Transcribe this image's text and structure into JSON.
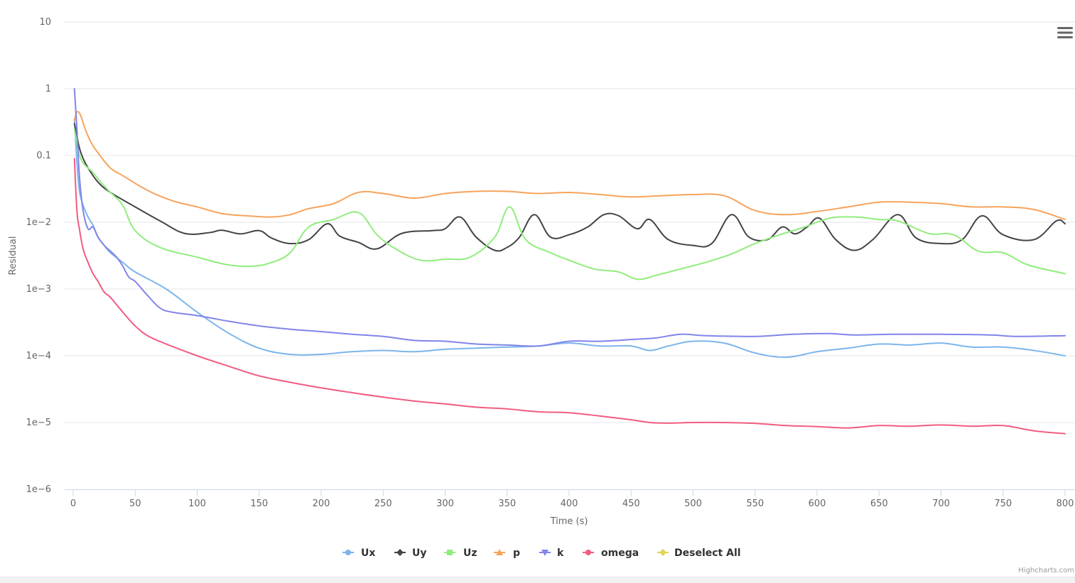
{
  "chart_data": {
    "type": "line",
    "title": "",
    "xlabel": "Time (s)",
    "ylabel": "Residual",
    "yscale": "log",
    "ylim": [
      1e-06,
      10
    ],
    "xlim": [
      0,
      800
    ],
    "x_ticks": [
      0,
      50,
      100,
      150,
      200,
      250,
      300,
      350,
      400,
      450,
      500,
      550,
      600,
      650,
      700,
      750,
      800
    ],
    "x_tick_labels": [
      "0",
      "50",
      "100",
      "150",
      "200",
      "250",
      "300",
      "350",
      "400",
      "450",
      "500",
      "550",
      "600",
      "650",
      "700",
      "750",
      "800"
    ],
    "y_ticks": [
      1e-06,
      1e-05,
      0.0001,
      0.001,
      0.01,
      0.1,
      1,
      10
    ],
    "y_tick_labels": [
      "1e−6",
      "1e−5",
      "1e−4",
      "1e−3",
      "1e−2",
      "0.1",
      "1",
      "10"
    ],
    "series": [
      {
        "name": "Ux",
        "color": "#7cb5ec",
        "marker": "circle",
        "x": [
          1,
          3,
          5,
          8,
          12,
          16,
          20,
          25,
          30,
          40,
          50,
          75,
          100,
          125,
          150,
          175,
          200,
          225,
          250,
          275,
          300,
          325,
          350,
          375,
          400,
          425,
          450,
          465,
          480,
          500,
          525,
          550,
          575,
          600,
          625,
          650,
          675,
          700,
          725,
          750,
          775,
          800
        ],
        "y": [
          0.35,
          0.08,
          0.03,
          0.018,
          0.012,
          0.009,
          0.006,
          0.0045,
          0.0035,
          0.0025,
          0.0018,
          0.001,
          0.00045,
          0.00022,
          0.00013,
          0.000105,
          0.000105,
          0.000115,
          0.00012,
          0.000115,
          0.000125,
          0.00013,
          0.000135,
          0.00014,
          0.000155,
          0.00014,
          0.00014,
          0.00012,
          0.00014,
          0.000165,
          0.000155,
          0.00011,
          9.5e-05,
          0.000115,
          0.00013,
          0.00015,
          0.000145,
          0.000155,
          0.000135,
          0.000135,
          0.00012,
          0.0001
        ]
      },
      {
        "name": "Uy",
        "color": "#434348",
        "marker": "diamond",
        "x": [
          1,
          3,
          5,
          8,
          12,
          20,
          30,
          50,
          70,
          90,
          110,
          120,
          135,
          150,
          160,
          175,
          190,
          205,
          215,
          230,
          245,
          265,
          290,
          300,
          312,
          325,
          340,
          350,
          360,
          372,
          385,
          400,
          415,
          428,
          440,
          455,
          465,
          480,
          500,
          515,
          531,
          545,
          560,
          572,
          582,
          592,
          602,
          615,
          630,
          645,
          665,
          680,
          700,
          717,
          733,
          750,
          775,
          793,
          800
        ],
        "y": [
          0.3,
          0.2,
          0.13,
          0.09,
          0.065,
          0.04,
          0.028,
          0.017,
          0.0105,
          0.0068,
          0.007,
          0.0076,
          0.0067,
          0.0075,
          0.0058,
          0.0048,
          0.0055,
          0.0095,
          0.0062,
          0.005,
          0.004,
          0.0068,
          0.0075,
          0.008,
          0.012,
          0.006,
          0.0038,
          0.0042,
          0.006,
          0.013,
          0.006,
          0.0065,
          0.0085,
          0.013,
          0.0125,
          0.008,
          0.011,
          0.0055,
          0.0045,
          0.0048,
          0.013,
          0.006,
          0.0055,
          0.0085,
          0.0067,
          0.0085,
          0.0115,
          0.0055,
          0.0038,
          0.0055,
          0.013,
          0.0058,
          0.0048,
          0.0055,
          0.0125,
          0.0065,
          0.0055,
          0.0105,
          0.0095
        ]
      },
      {
        "name": "Uz",
        "color": "#90ed7d",
        "marker": "square",
        "x": [
          1,
          3,
          6,
          10,
          15,
          20,
          25,
          30,
          40,
          50,
          70,
          100,
          125,
          145,
          160,
          175,
          190,
          210,
          230,
          245,
          260,
          280,
          300,
          320,
          340,
          352,
          365,
          385,
          400,
          420,
          440,
          455,
          470,
          490,
          510,
          530,
          550,
          570,
          590,
          610,
          630,
          650,
          665,
          690,
          710,
          730,
          750,
          770,
          800
        ],
        "y": [
          0.25,
          0.15,
          0.09,
          0.07,
          0.058,
          0.045,
          0.035,
          0.028,
          0.018,
          0.0075,
          0.0042,
          0.003,
          0.0023,
          0.0022,
          0.0025,
          0.0035,
          0.0085,
          0.011,
          0.014,
          0.0065,
          0.004,
          0.0027,
          0.0028,
          0.003,
          0.006,
          0.017,
          0.0055,
          0.0035,
          0.0027,
          0.002,
          0.0018,
          0.0014,
          0.0016,
          0.002,
          0.0025,
          0.0033,
          0.0048,
          0.0065,
          0.0085,
          0.0115,
          0.012,
          0.011,
          0.0105,
          0.0068,
          0.0065,
          0.0037,
          0.0035,
          0.0023,
          0.0017
        ]
      },
      {
        "name": "p",
        "color": "#f7a35c",
        "marker": "triangle",
        "x": [
          1,
          3,
          6,
          10,
          15,
          20,
          30,
          40,
          60,
          80,
          100,
          120,
          140,
          160,
          175,
          190,
          210,
          230,
          250,
          275,
          300,
          325,
          350,
          375,
          400,
          425,
          450,
          475,
          500,
          525,
          550,
          575,
          600,
          625,
          650,
          675,
          700,
          725,
          750,
          775,
          800
        ],
        "y": [
          0.33,
          0.45,
          0.4,
          0.24,
          0.15,
          0.11,
          0.065,
          0.05,
          0.03,
          0.021,
          0.017,
          0.0135,
          0.0125,
          0.012,
          0.013,
          0.016,
          0.019,
          0.028,
          0.027,
          0.023,
          0.027,
          0.029,
          0.029,
          0.027,
          0.028,
          0.026,
          0.024,
          0.025,
          0.026,
          0.025,
          0.015,
          0.013,
          0.0145,
          0.017,
          0.02,
          0.02,
          0.019,
          0.017,
          0.017,
          0.0155,
          0.011
        ]
      },
      {
        "name": "k",
        "color": "#8085e9",
        "marker": "triangle-down",
        "x": [
          1,
          3,
          5,
          8,
          12,
          16,
          20,
          25,
          30,
          35,
          40,
          45,
          50,
          60,
          70,
          80,
          100,
          125,
          150,
          175,
          200,
          225,
          250,
          275,
          300,
          325,
          350,
          375,
          400,
          425,
          450,
          470,
          490,
          510,
          550,
          580,
          610,
          630,
          660,
          700,
          740,
          760,
          800
        ],
        "y": [
          1,
          0.25,
          0.05,
          0.015,
          0.008,
          0.0085,
          0.006,
          0.0045,
          0.0037,
          0.003,
          0.0022,
          0.0015,
          0.0013,
          0.0008,
          0.00052,
          0.00045,
          0.0004,
          0.00033,
          0.00028,
          0.00025,
          0.00023,
          0.00021,
          0.000195,
          0.00017,
          0.000165,
          0.00015,
          0.000145,
          0.00014,
          0.000165,
          0.000165,
          0.000175,
          0.000185,
          0.00021,
          0.0002,
          0.000195,
          0.00021,
          0.000215,
          0.000205,
          0.00021,
          0.00021,
          0.000205,
          0.000195,
          0.0002
        ]
      },
      {
        "name": "omega",
        "color": "#f15c80",
        "marker": "circle",
        "x": [
          1,
          3,
          5,
          8,
          12,
          16,
          20,
          25,
          30,
          40,
          50,
          60,
          75,
          100,
          125,
          150,
          175,
          200,
          225,
          250,
          275,
          300,
          325,
          350,
          375,
          400,
          425,
          450,
          465,
          480,
          500,
          525,
          550,
          575,
          600,
          625,
          650,
          675,
          700,
          725,
          750,
          775,
          800
        ],
        "y": [
          0.09,
          0.015,
          0.008,
          0.004,
          0.0025,
          0.0017,
          0.0013,
          0.0009,
          0.00075,
          0.00045,
          0.00028,
          0.0002,
          0.00015,
          0.0001,
          7e-05,
          5e-05,
          4e-05,
          3.3e-05,
          2.8e-05,
          2.4e-05,
          2.1e-05,
          1.9e-05,
          1.7e-05,
          1.6e-05,
          1.45e-05,
          1.4e-05,
          1.25e-05,
          1.1e-05,
          1e-05,
          9.8e-06,
          1e-05,
          1e-05,
          9.7e-06,
          9e-06,
          8.7e-06,
          8.3e-06,
          9e-06,
          8.8e-06,
          9.2e-06,
          8.8e-06,
          9e-06,
          7.5e-06,
          6.8e-06
        ]
      }
    ],
    "legend": {
      "placement": "bottom-center",
      "items": [
        {
          "label": "Ux",
          "color": "#7cb5ec",
          "marker": "circle"
        },
        {
          "label": "Uy",
          "color": "#434348",
          "marker": "diamond"
        },
        {
          "label": "Uz",
          "color": "#90ed7d",
          "marker": "square"
        },
        {
          "label": "p",
          "color": "#f7a35c",
          "marker": "triangle"
        },
        {
          "label": "k",
          "color": "#8085e9",
          "marker": "triangle-down"
        },
        {
          "label": "omega",
          "color": "#f15c80",
          "marker": "circle"
        },
        {
          "label": "Deselect All",
          "color": "#e4d354",
          "marker": "diamond"
        }
      ]
    },
    "credits": "Highcharts.com",
    "menu_icon": "hamburger-menu-icon"
  }
}
